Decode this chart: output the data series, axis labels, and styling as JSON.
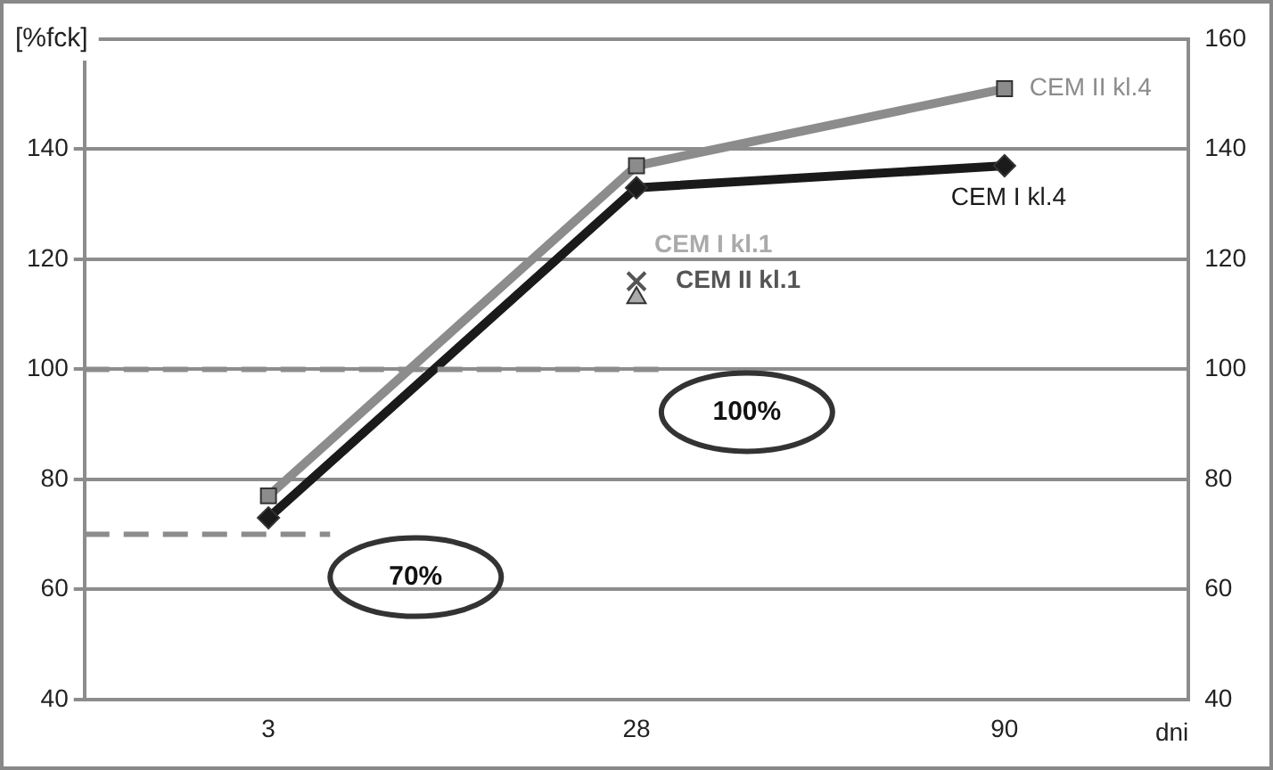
{
  "chart_data": {
    "type": "line",
    "ylabel": "[%fck]",
    "xlabel": "dni",
    "categories": [
      "3",
      "28",
      "90"
    ],
    "series": [
      {
        "name": "CEM II kl.4",
        "color": "#8c8c8c",
        "values": [
          77,
          137,
          151
        ],
        "marker": "square"
      },
      {
        "name": "CEM I kl.4",
        "color": "#1a1a1a",
        "values": [
          73,
          133,
          137
        ],
        "marker": "diamond"
      },
      {
        "name": "CEM II kl.1",
        "type": "scatter",
        "color": "#555555",
        "x": [
          "28"
        ],
        "values": [
          116
        ],
        "marker": "cross"
      },
      {
        "name": "CEM I kl.1",
        "type": "scatter",
        "color": "#aaaaaa",
        "x": [
          "28"
        ],
        "values": [
          113
        ],
        "marker": "triangle"
      }
    ],
    "ylim": [
      40,
      160
    ],
    "yticks": [
      40,
      60,
      80,
      100,
      120,
      140,
      {
        "value": 160,
        "label": null
      }
    ],
    "y2lim": [
      40,
      160
    ],
    "y2ticks": [
      40,
      60,
      80,
      100,
      120,
      140,
      160
    ],
    "ref_lines": [
      {
        "axis": "y",
        "value": 70,
        "label": "70%",
        "color": "#8c8c8c",
        "line_style": "dashed"
      },
      {
        "axis": "y",
        "value": 100,
        "label": "100%",
        "color": "#8c8c8c",
        "line_style": "dashed"
      }
    ],
    "grid": "y",
    "legend": false
  }
}
